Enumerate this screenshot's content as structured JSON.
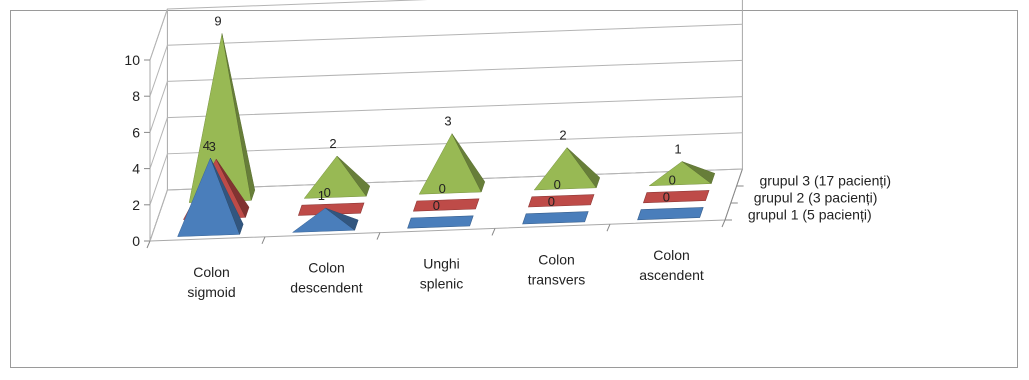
{
  "chart_data": {
    "type": "bar",
    "style": "3d-pyramid",
    "categories": [
      [
        "Colon",
        "sigmoid"
      ],
      [
        "Colon",
        "descendent"
      ],
      [
        "Unghi",
        "splenic"
      ],
      [
        "Colon",
        "transvers"
      ],
      [
        "Colon",
        "ascendent"
      ]
    ],
    "series": [
      {
        "name": "grupul 1 (5 pacienți)",
        "values": [
          4,
          1,
          0,
          0,
          0
        ],
        "color": "#4a7ebb"
      },
      {
        "name": "grupul 2 (3 pacienți)",
        "values": [
          3,
          0,
          0,
          0,
          0
        ],
        "color": "#be4b48"
      },
      {
        "name": "grupul 3 (17 pacienți)",
        "values": [
          9,
          2,
          3,
          2,
          1
        ],
        "color": "#98b954"
      }
    ],
    "ylim": [
      0,
      10
    ],
    "yticks": [
      "0",
      "2",
      "4",
      "6",
      "8",
      "10"
    ],
    "grid": true,
    "legend": "series labels along depth axis (right)"
  }
}
